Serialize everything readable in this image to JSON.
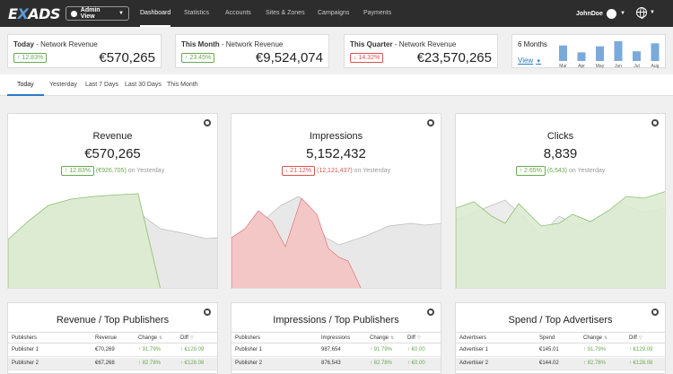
{
  "nav": {
    "logo_a": "E",
    "logo_b": "X",
    "logo_c": "ADS",
    "view_selector": "Admin View",
    "items": [
      "Dashboard",
      "Statistics",
      "Accounts",
      "Sites & Zones",
      "Campaigns",
      "Payments"
    ],
    "user": "JohnDoe"
  },
  "kpis": [
    {
      "title": "Today",
      "subtitle": " - Network Revenue",
      "badge": "↑ 12.83%",
      "value": "€570,265"
    },
    {
      "title": "This Month",
      "subtitle": " - Network Revenue",
      "badge": "↑ 23.45%",
      "value": "€9,524,074"
    },
    {
      "title": "This Quarter",
      "subtitle": " - Network Revenue",
      "badge": "↓ 14.32%",
      "value": "€23,570,265"
    }
  ],
  "mini": {
    "title": "6 Months",
    "view": "View",
    "months": [
      "Mar",
      "Apr",
      "May",
      "Jun",
      "Jul",
      "Aug"
    ],
    "bar_levels": [
      0.72,
      0.4,
      0.68,
      0.92,
      0.45,
      0.82
    ],
    "bar_color": "#7aaadc"
  },
  "tabs": [
    "Today",
    "Yesterday",
    "Last 7 Days",
    "Last 30 Days",
    "This Month"
  ],
  "panels": [
    {
      "title": "Revenue",
      "value": "€570,265",
      "badge": "↑ 12.83%",
      "paren": "(€926,705)",
      "suffix": " on Yesterday"
    },
    {
      "title": "Impressions",
      "value": "5,152,432",
      "badge": "↓ 21.12%",
      "paren": "(12,121,437)",
      "suffix": " on Yesterday"
    },
    {
      "title": "Clicks",
      "value": "8,839",
      "badge": "↑ 2.65%",
      "paren": "(6,543)",
      "suffix": " on Yesterday"
    }
  ],
  "colors": {
    "up": "#6aa84f",
    "down": "#d9534f",
    "grey_area": "#e6e6e6",
    "green_area": "#dcebd2",
    "red_area": "#f4c7c7"
  },
  "tables": [
    {
      "title": "Revenue / Top Publishers",
      "headers": [
        "Publishers",
        "Revenue",
        "Change",
        "Diff"
      ],
      "rows": [
        [
          "Publisher 1",
          "€70,269",
          "↑ 91.79%",
          "↑ €129.09"
        ],
        [
          "Publisher 2",
          "€67,268",
          "↑ 82.78%",
          "↑ €128.08"
        ]
      ]
    },
    {
      "title": "Impressions / Top Publishers",
      "headers": [
        "Publishers",
        "Impressions",
        "Change",
        "Diff"
      ],
      "rows": [
        [
          "Publisher 1",
          "987,654",
          "↑ 91.79%",
          "↑ €0.00"
        ],
        [
          "Publisher 2",
          "876,543",
          "↑ 82.78%",
          "↑ €0.00"
        ]
      ]
    },
    {
      "title": "Spend / Top Advertisers",
      "headers": [
        "Advertisers",
        "Spend",
        "Change",
        "Diff"
      ],
      "rows": [
        [
          "Advertiser 1",
          "€145.01",
          "↑ 91.79%",
          "↑ €129.09"
        ],
        [
          "Advertiser 2",
          "€144.02",
          "↑ 82.78%",
          "↑ €128.08"
        ]
      ]
    }
  ]
}
